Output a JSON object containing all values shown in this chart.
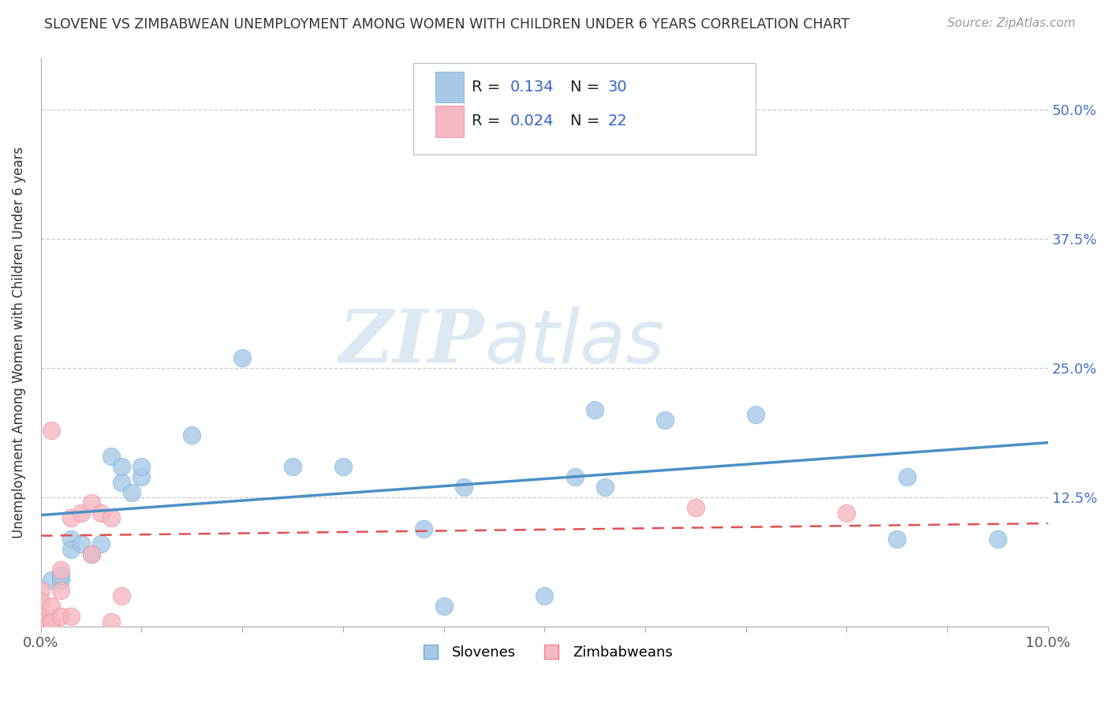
{
  "title": "SLOVENE VS ZIMBABWEAN UNEMPLOYMENT AMONG WOMEN WITH CHILDREN UNDER 6 YEARS CORRELATION CHART",
  "source": "Source: ZipAtlas.com",
  "ylabel": "Unemployment Among Women with Children Under 6 years",
  "xlim": [
    0.0,
    0.1
  ],
  "ylim": [
    0.0,
    0.55
  ],
  "xticks": [
    0.0,
    0.01,
    0.02,
    0.03,
    0.04,
    0.05,
    0.06,
    0.07,
    0.08,
    0.09,
    0.1
  ],
  "yticks": [
    0.0,
    0.125,
    0.25,
    0.375,
    0.5
  ],
  "grid_color": "#cccccc",
  "background_color": "#ffffff",
  "watermark_zip": "ZIP",
  "watermark_atlas": "atlas",
  "legend_R1_val": "0.134",
  "legend_N1_val": "30",
  "legend_R2_val": "0.024",
  "legend_N2_val": "22",
  "slovene_color": "#a8c8e8",
  "zimbabwean_color": "#f4b8c0",
  "slovene_edge_color": "#6baed6",
  "zimbabwean_edge_color": "#f48098",
  "slovene_line_color": "#4a90c4",
  "zimbabwean_line_color": "#e05050",
  "slovene_scatter": [
    [
      0.001,
      0.045
    ],
    [
      0.002,
      0.045
    ],
    [
      0.002,
      0.05
    ],
    [
      0.003,
      0.085
    ],
    [
      0.003,
      0.075
    ],
    [
      0.004,
      0.08
    ],
    [
      0.005,
      0.07
    ],
    [
      0.006,
      0.08
    ],
    [
      0.007,
      0.165
    ],
    [
      0.008,
      0.14
    ],
    [
      0.008,
      0.155
    ],
    [
      0.009,
      0.13
    ],
    [
      0.01,
      0.145
    ],
    [
      0.01,
      0.155
    ],
    [
      0.015,
      0.185
    ],
    [
      0.02,
      0.26
    ],
    [
      0.025,
      0.155
    ],
    [
      0.03,
      0.155
    ],
    [
      0.038,
      0.095
    ],
    [
      0.04,
      0.02
    ],
    [
      0.042,
      0.135
    ],
    [
      0.05,
      0.03
    ],
    [
      0.053,
      0.145
    ],
    [
      0.055,
      0.21
    ],
    [
      0.056,
      0.135
    ],
    [
      0.062,
      0.2
    ],
    [
      0.071,
      0.205
    ],
    [
      0.085,
      0.085
    ],
    [
      0.086,
      0.145
    ],
    [
      0.095,
      0.085
    ]
  ],
  "zimbabwean_scatter": [
    [
      0.0,
      0.035
    ],
    [
      0.0,
      0.025
    ],
    [
      0.0,
      0.01
    ],
    [
      0.0,
      0.005
    ],
    [
      0.001,
      0.005
    ],
    [
      0.001,
      0.02
    ],
    [
      0.001,
      0.005
    ],
    [
      0.001,
      0.19
    ],
    [
      0.002,
      0.035
    ],
    [
      0.002,
      0.055
    ],
    [
      0.002,
      0.01
    ],
    [
      0.003,
      0.01
    ],
    [
      0.003,
      0.105
    ],
    [
      0.004,
      0.11
    ],
    [
      0.005,
      0.07
    ],
    [
      0.005,
      0.12
    ],
    [
      0.006,
      0.11
    ],
    [
      0.007,
      0.105
    ],
    [
      0.007,
      0.005
    ],
    [
      0.008,
      0.03
    ],
    [
      0.065,
      0.115
    ],
    [
      0.08,
      0.11
    ]
  ],
  "slovene_trendline": [
    [
      0.0,
      0.108
    ],
    [
      0.1,
      0.178
    ]
  ],
  "zimbabwean_trendline": [
    [
      0.0,
      0.088
    ],
    [
      0.1,
      0.1
    ]
  ]
}
